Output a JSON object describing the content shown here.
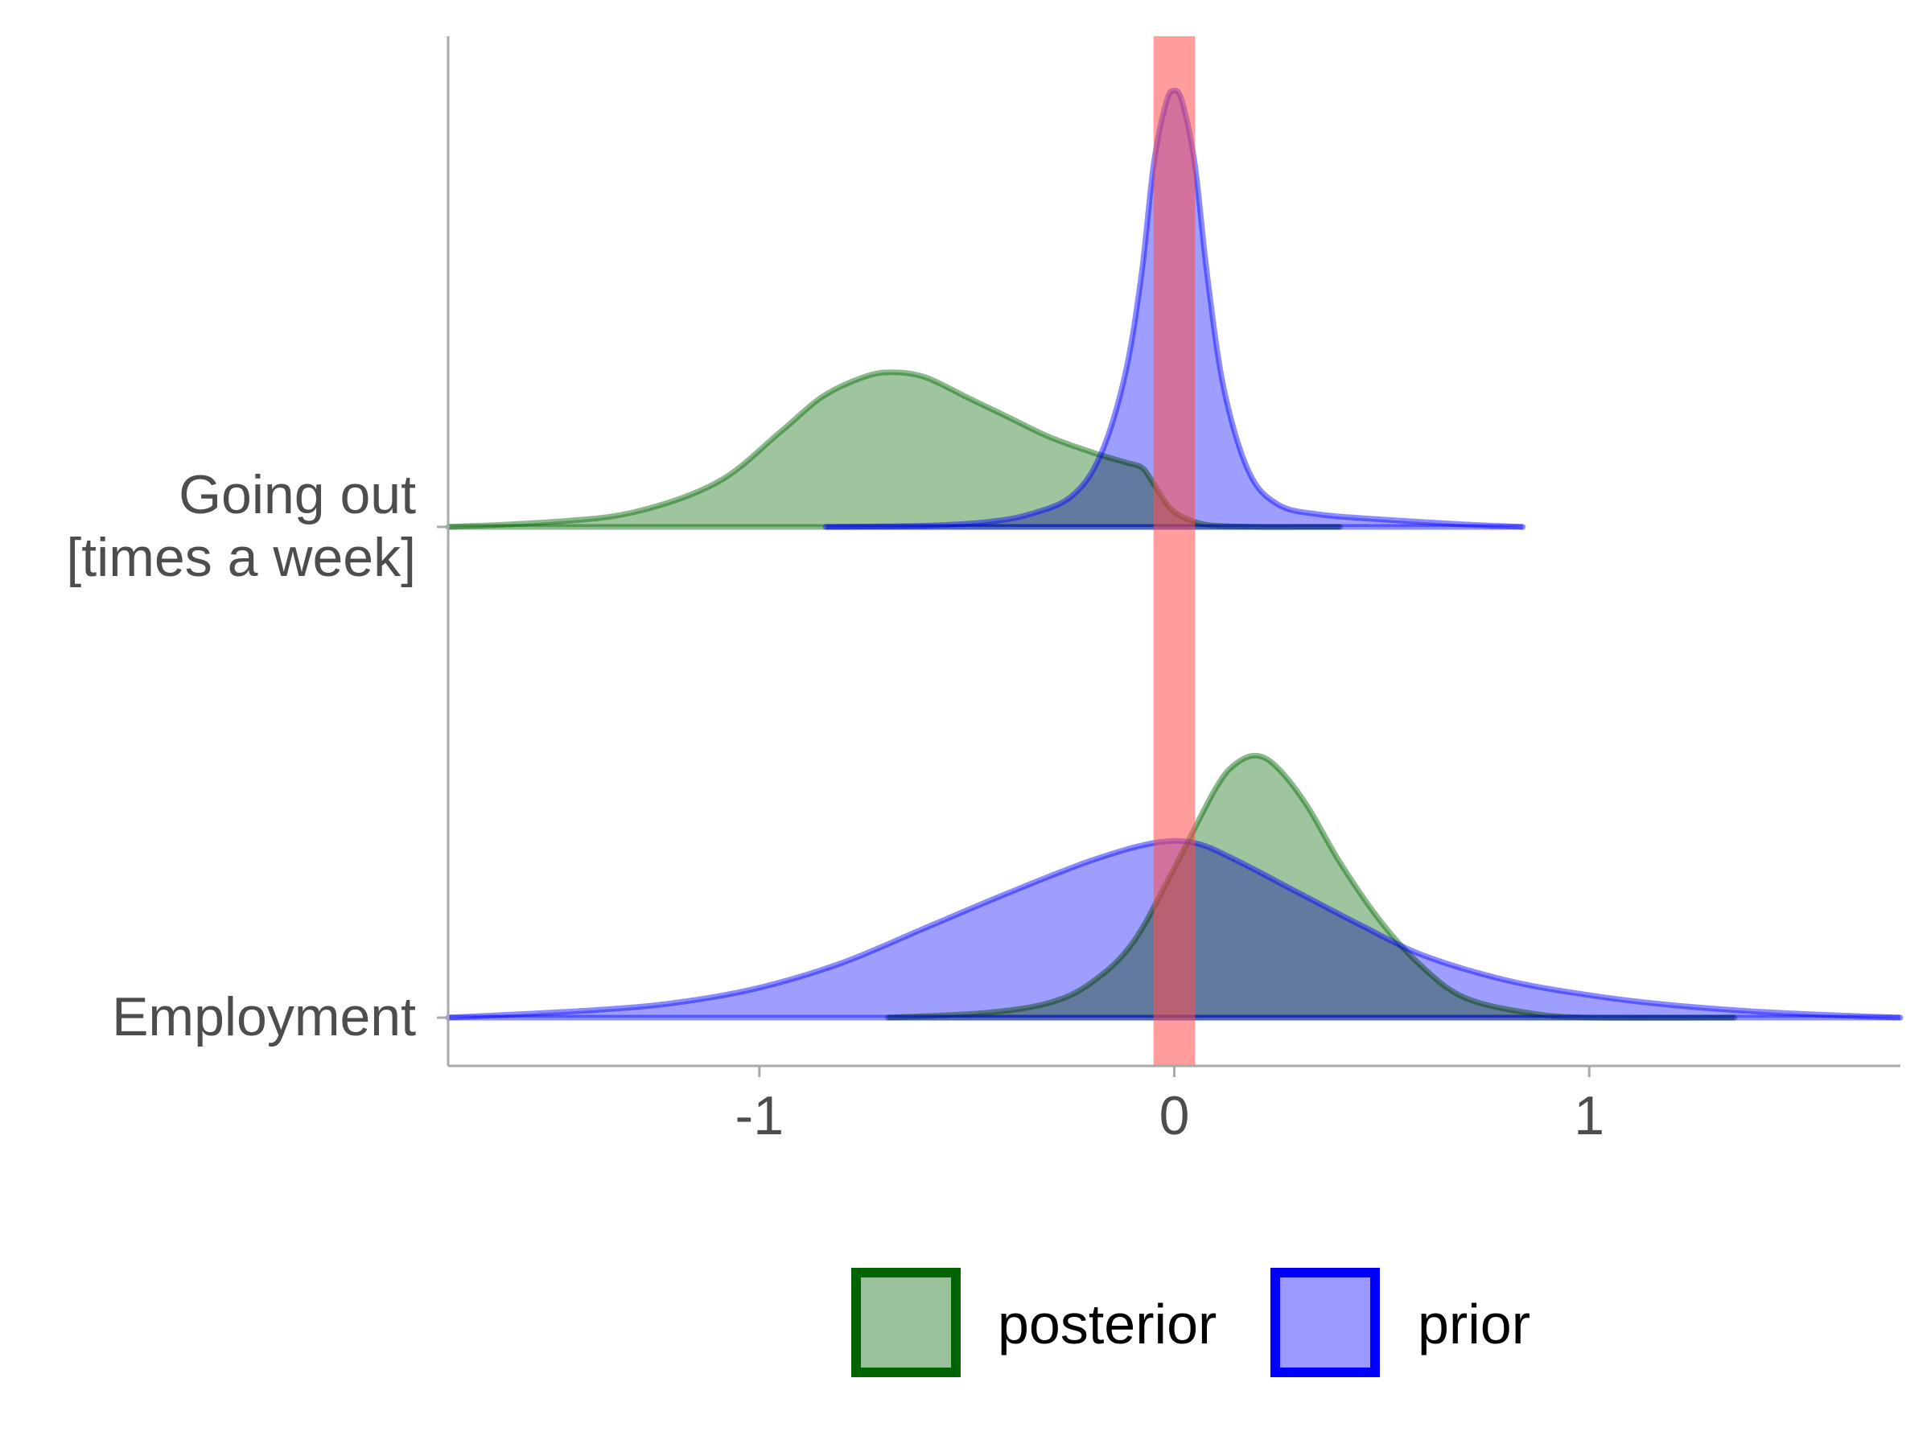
{
  "chart_data": {
    "type": "ridgeline-density",
    "title": "",
    "xlabel": "",
    "ylabel": "",
    "xlim": [
      -1.75,
      1.75
    ],
    "x_ticks": [
      {
        "value": -1,
        "label": "-1"
      },
      {
        "value": 0,
        "label": "0"
      },
      {
        "value": 1,
        "label": "1"
      }
    ],
    "categories": [
      {
        "key": "going_out",
        "lines": [
          "Going out",
          "[times a week]"
        ]
      },
      {
        "key": "employment",
        "lines": [
          "Employment"
        ]
      }
    ],
    "reference_band": {
      "from": -0.05,
      "to": 0.05,
      "color": "#ff4d4d"
    },
    "legend": {
      "position": "bottom",
      "items": [
        {
          "key": "posterior",
          "label": "posterior",
          "fill": "#9ac29a",
          "stroke": "#006400"
        },
        {
          "key": "prior",
          "label": "prior",
          "fill": "#9999ff",
          "stroke": "#0000ff"
        }
      ]
    },
    "series": [
      {
        "name": "posterior",
        "category": "going_out",
        "x": [
          -1.75,
          -1.5,
          -1.3,
          -1.1,
          -0.95,
          -0.85,
          -0.75,
          -0.68,
          -0.6,
          -0.5,
          -0.4,
          -0.3,
          -0.2,
          -0.12,
          -0.08,
          -0.06,
          -0.03,
          0,
          0.05,
          0.1,
          0.2,
          0.3,
          0.4
        ],
        "density": [
          0.0,
          0.02,
          0.06,
          0.18,
          0.38,
          0.52,
          0.6,
          0.62,
          0.6,
          0.52,
          0.44,
          0.36,
          0.3,
          0.26,
          0.24,
          0.2,
          0.12,
          0.06,
          0.02,
          0.005,
          0.0,
          0.0,
          0.0
        ]
      },
      {
        "name": "prior",
        "category": "going_out",
        "x": [
          -0.84,
          -0.6,
          -0.45,
          -0.35,
          -0.25,
          -0.18,
          -0.12,
          -0.08,
          -0.05,
          -0.02,
          0,
          0.02,
          0.05,
          0.08,
          0.12,
          0.18,
          0.25,
          0.35,
          0.5,
          0.7,
          0.84
        ],
        "density": [
          0.0,
          0.005,
          0.02,
          0.05,
          0.12,
          0.28,
          0.6,
          1.0,
          1.45,
          1.7,
          1.75,
          1.7,
          1.45,
          1.0,
          0.55,
          0.22,
          0.09,
          0.05,
          0.03,
          0.01,
          0.0
        ]
      },
      {
        "name": "posterior",
        "category": "employment",
        "x": [
          -0.69,
          -0.45,
          -0.3,
          -0.2,
          -0.1,
          0,
          0.1,
          0.15,
          0.2,
          0.25,
          0.32,
          0.4,
          0.5,
          0.6,
          0.7,
          0.85,
          1.0,
          1.35
        ],
        "density": [
          0.0,
          0.02,
          0.06,
          0.14,
          0.3,
          0.6,
          0.92,
          1.02,
          1.05,
          1.0,
          0.85,
          0.62,
          0.38,
          0.2,
          0.08,
          0.02,
          0.0,
          0.0
        ]
      },
      {
        "name": "prior",
        "category": "employment",
        "x": [
          -1.75,
          -1.4,
          -1.2,
          -1.0,
          -0.8,
          -0.6,
          -0.4,
          -0.2,
          -0.05,
          0.05,
          0.15,
          0.3,
          0.45,
          0.6,
          0.8,
          1.0,
          1.2,
          1.45,
          1.75
        ],
        "density": [
          0.0,
          0.03,
          0.06,
          0.12,
          0.22,
          0.36,
          0.5,
          0.63,
          0.7,
          0.7,
          0.63,
          0.5,
          0.37,
          0.25,
          0.15,
          0.09,
          0.05,
          0.02,
          0.0
        ]
      }
    ]
  }
}
